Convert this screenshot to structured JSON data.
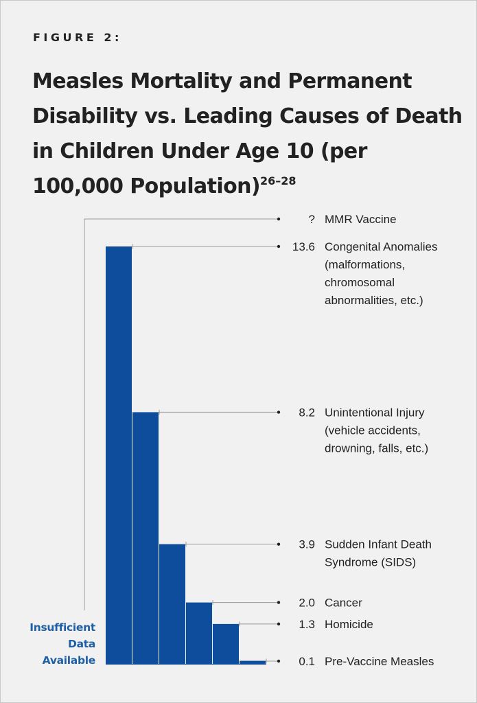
{
  "figure_label": "FIGURE 2:",
  "title": {
    "main": "Measles Mortality and Permanent Disability vs. Leading Causes of Death in Children Under Age 10 (per 100,000 Population)",
    "superscript": "26–28"
  },
  "insufficient_note": [
    "Insufficient",
    "Data",
    "Available"
  ],
  "colors": {
    "bar": "#0e4c9c",
    "note": "#1f5fa6",
    "leader": "#9a9a9a",
    "text": "#222222"
  },
  "chart_data": {
    "type": "bar",
    "orientation": "vertical",
    "categories": [
      "MMR Vaccine",
      "Congenital Anomalies (malformations, chromosomal abnormalities, etc.)",
      "Unintentional Injury (vehicle accidents, drowning, falls, etc.)",
      "Sudden Infant Death Syndrome (SIDS)",
      "Cancer",
      "Homicide",
      "Pre-Vaccine Measles"
    ],
    "label_lines": [
      [
        "MMR Vaccine"
      ],
      [
        "Congenital Anomalies",
        "(malformations,",
        "chromosomal",
        "abnormalities, etc.)"
      ],
      [
        "Unintentional Injury",
        "(vehicle accidents,",
        "drowning, falls, etc.)"
      ],
      [
        "Sudden Infant Death",
        "Syndrome (SIDS)"
      ],
      [
        "Cancer"
      ],
      [
        "Homicide"
      ],
      [
        "Pre-Vaccine Measles"
      ]
    ],
    "value_labels": [
      "?",
      "13.6",
      "8.2",
      "3.9",
      "2.0",
      "1.3",
      "0.1"
    ],
    "values": [
      null,
      13.6,
      8.2,
      3.9,
      2.0,
      1.3,
      0.1
    ],
    "ylim": [
      0,
      13.6
    ],
    "grid": false,
    "legend": "none"
  }
}
